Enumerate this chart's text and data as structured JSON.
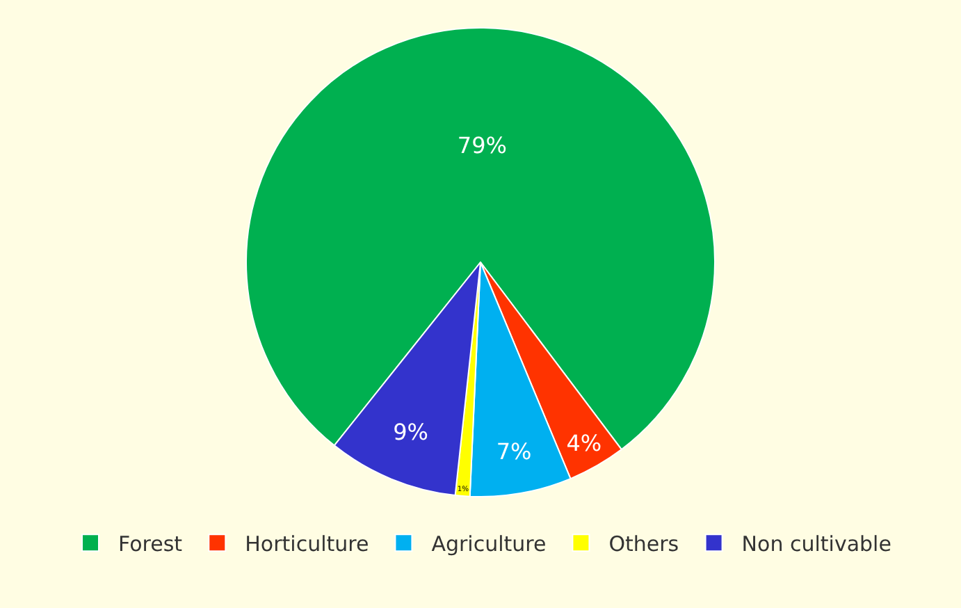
{
  "chart_data": {
    "type": "pie",
    "categories": [
      "Forest",
      "Horticulture",
      "Agriculture",
      "Others",
      "Non cultivable"
    ],
    "values": [
      79,
      4,
      7,
      1,
      9
    ],
    "colors": [
      "#00b050",
      "#ff3300",
      "#00b0f0",
      "#ffff00",
      "#3333cc"
    ],
    "value_labels": [
      "79%",
      "4%",
      "7%",
      "1%",
      "9%"
    ],
    "legend": "bottom"
  }
}
